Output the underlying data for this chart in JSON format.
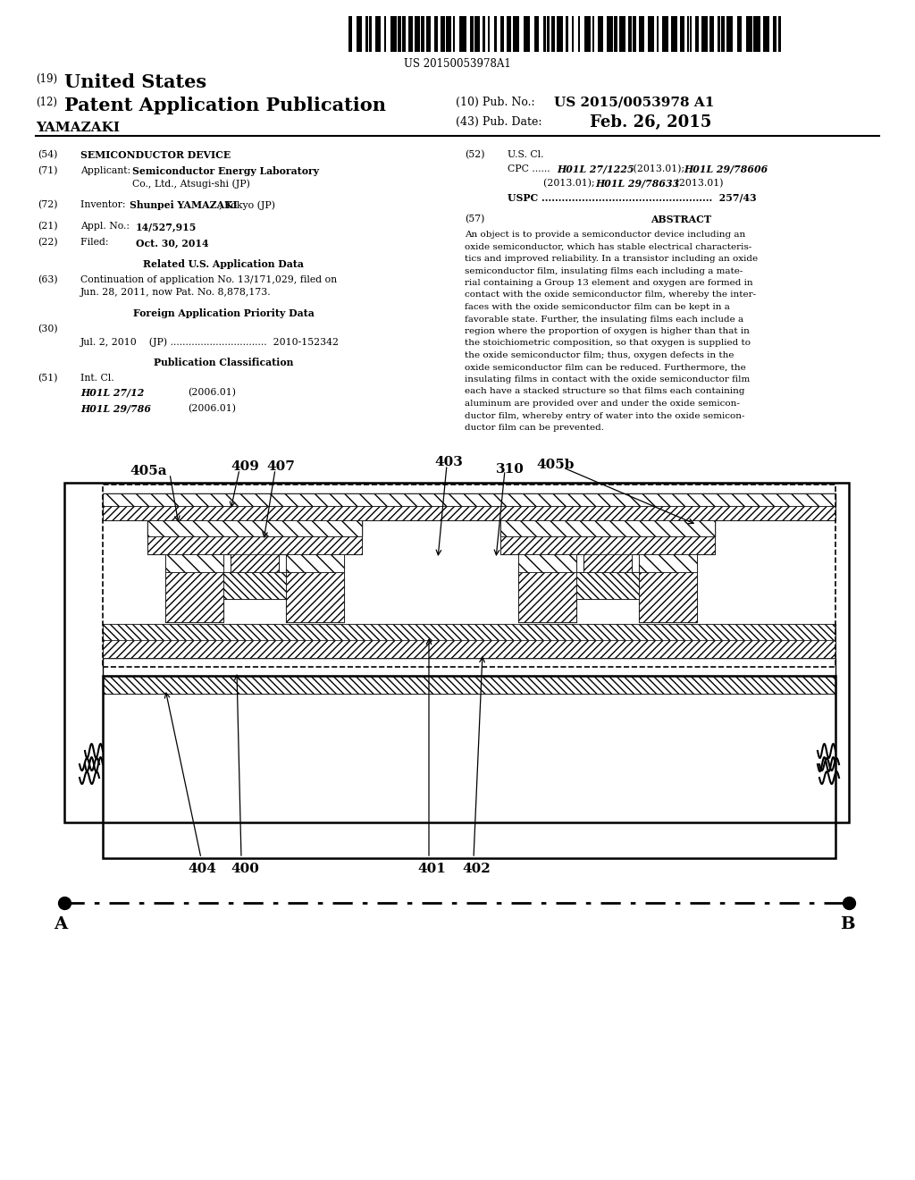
{
  "background_color": "#ffffff",
  "barcode_text": "US 20150053978A1",
  "h19_label": "(19)",
  "h19_text": "United States",
  "h12_label": "(12)",
  "h12_text": "Patent Application Publication",
  "hpub_label": "(10) Pub. No.:",
  "hpub_text": "US 2015/0053978 A1",
  "hname": "YAMAZAKI",
  "hdate_label": "(43) Pub. Date:",
  "hdate_text": "Feb. 26, 2015",
  "s54_label": "(54)",
  "s54_text": "SEMICONDUCTOR DEVICE",
  "s71_label": "(71)",
  "s71_a": "Applicant:",
  "s71_b": "Semiconductor Energy Laboratory",
  "s71_c": "Co., Ltd., Atsugi-shi (JP)",
  "s72_label": "(72)",
  "s72_a": "Inventor:",
  "s72_b": "Shunpei YAMAZAKI",
  "s72_c": ", Tokyo (JP)",
  "s21_label": "(21)",
  "s21_a": "Appl. No.:",
  "s21_b": "14/527,915",
  "s22_label": "(22)",
  "s22_a": "Filed:",
  "s22_b": "Oct. 30, 2014",
  "rel_header": "Related U.S. Application Data",
  "s63_label": "(63)",
  "s63_line1": "Continuation of application No. 13/171,029, filed on",
  "s63_line2": "Jun. 28, 2011, now Pat. No. 8,878,173.",
  "for_header": "Foreign Application Priority Data",
  "s30_label": "(30)",
  "s30_text": "Jul. 2, 2010    (JP) ................................  2010-152342",
  "pub_header": "Publication Classification",
  "s51_label": "(51)",
  "s51_int": "Int. Cl.",
  "s51_h1": "H01L 27/12",
  "s51_y1": "(2006.01)",
  "s51_h2": "H01L 29/786",
  "s51_y2": "(2006.01)",
  "s52_label": "(52)",
  "s52_usc": "U.S. Cl.",
  "s52_cpc1": "CPC ......",
  "s52_cpc2": "H01L 27/1225",
  "s52_cpc3": " (2013.01); ",
  "s52_cpc4": "H01L 29/78606",
  "s52_cpc5": "(2013.01); ",
  "s52_cpc6": "H01L 29/78633",
  "s52_cpc7": " (2013.01)",
  "s52_uspc": "USPC ...................................................  257/43",
  "s57_label": "(57)",
  "s57_head": "ABSTRACT",
  "abstract": "An object is to provide a semiconductor device including an oxide semiconductor, which has stable electrical characteris-tics and improved reliability. In a transistor including an oxide semiconductor film, insulating films each including a mate-rial containing a Group 13 element and oxygen are formed in contact with the oxide semiconductor film, whereby the inter-faces with the oxide semiconductor film can be kept in a favorable state. Further, the insulating films each include a region where the proportion of oxygen is higher than that in the stoichiometric composition, so that oxygen is supplied to the oxide semiconductor film; thus, oxygen defects in the oxide semiconductor film can be reduced. Furthermore, the insulating films in contact with the oxide semiconductor film each have a stacked structure so that films each containing aluminum are provided over and under the oxide semicon-ductor film, whereby entry of water into the oxide semicon-ductor film can be prevented."
}
